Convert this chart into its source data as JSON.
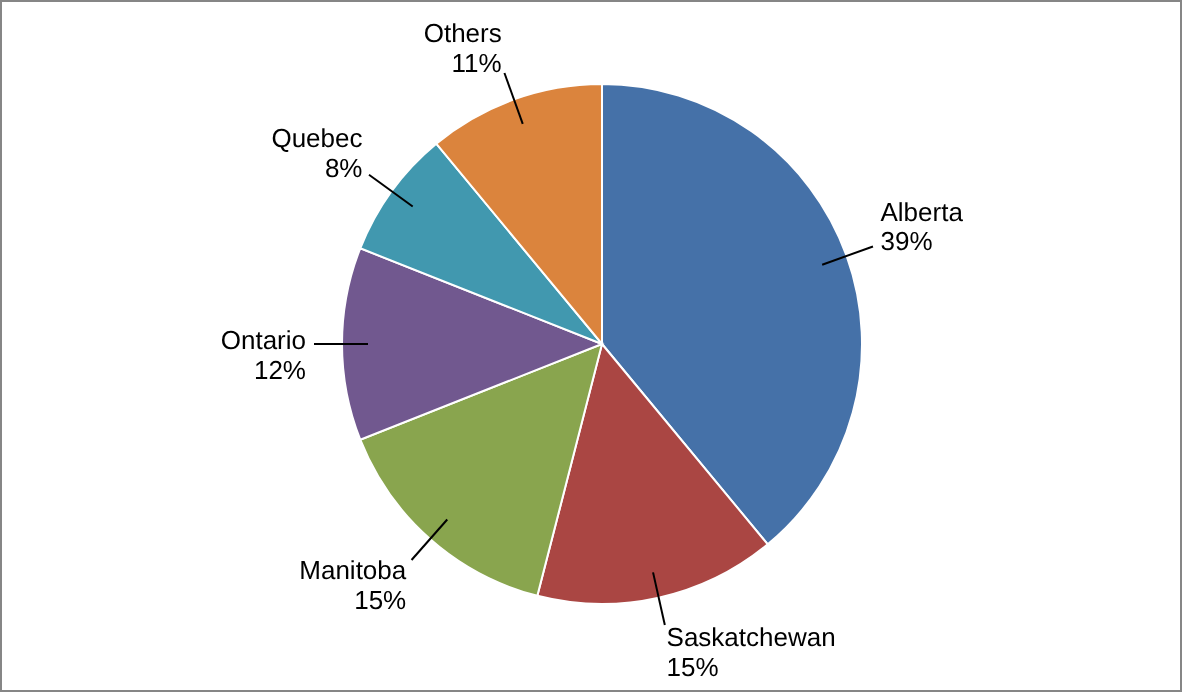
{
  "chart_data": {
    "type": "pie",
    "categories": [
      "Alberta",
      "Saskatchewan",
      "Manitoba",
      "Ontario",
      "Quebec",
      "Others"
    ],
    "values": [
      39,
      15,
      15,
      12,
      8,
      11
    ],
    "value_labels": [
      "39%",
      "15%",
      "15%",
      "12%",
      "8%",
      "11%"
    ],
    "colors": [
      "#4571a8",
      "#aa4643",
      "#89a54e",
      "#71588f",
      "#4198af",
      "#db843d"
    ],
    "legend": false
  }
}
